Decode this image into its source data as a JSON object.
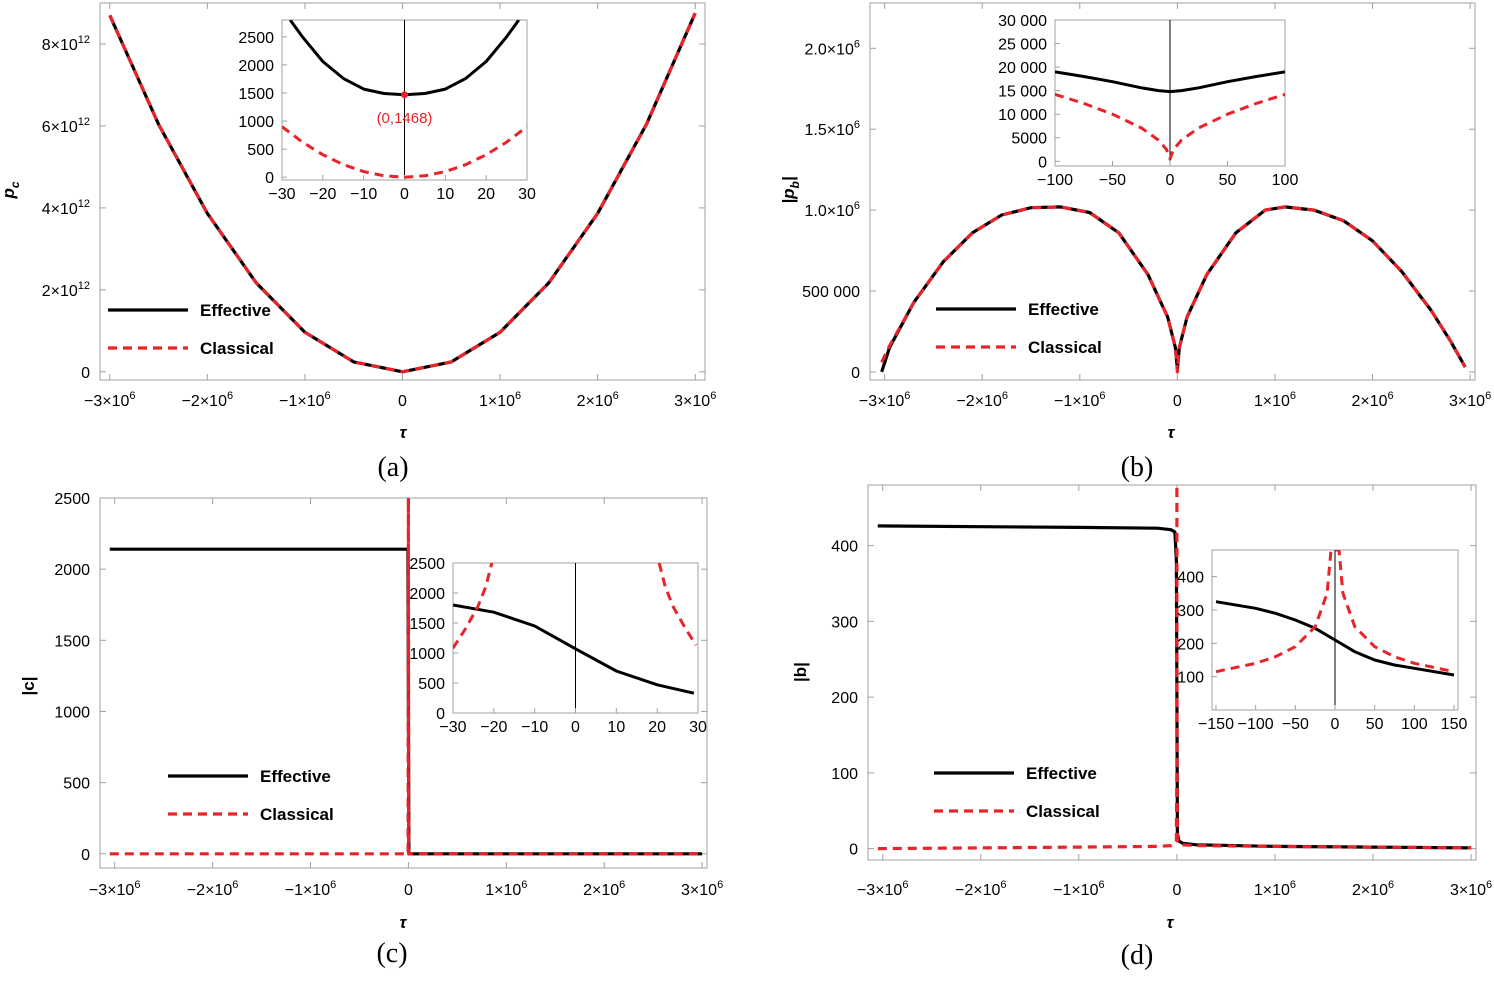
{
  "colors": {
    "effective": "#000000",
    "classical": "#e8232a",
    "frame": "#a0a0a0",
    "background": "#ffffff"
  },
  "legend": {
    "effective": "Effective",
    "classical": "Classical"
  },
  "chart_data": [
    {
      "id": "a",
      "panel_label": "(a)",
      "type": "line",
      "xlabel": "τ",
      "ylabel_main": "p",
      "ylabel_sub": "c",
      "xlim": [
        -3100000,
        3100000
      ],
      "ylim": [
        -200000000000,
        9000000000000
      ],
      "xticks": [
        {
          "v": -3000000,
          "m": "−3×10",
          "e": "6"
        },
        {
          "v": -2000000,
          "m": "−2×10",
          "e": "6"
        },
        {
          "v": -1000000,
          "m": "−1×10",
          "e": "6"
        },
        {
          "v": 0,
          "m": "0",
          "e": ""
        },
        {
          "v": 1000000,
          "m": "1×10",
          "e": "6"
        },
        {
          "v": 2000000,
          "m": "2×10",
          "e": "6"
        },
        {
          "v": 3000000,
          "m": "3×10",
          "e": "6"
        }
      ],
      "yticks": [
        {
          "v": 0,
          "m": "0",
          "e": ""
        },
        {
          "v": 2000000000000,
          "m": "2×10",
          "e": "12"
        },
        {
          "v": 4000000000000,
          "m": "4×10",
          "e": "12"
        },
        {
          "v": 6000000000000,
          "m": "6×10",
          "e": "12"
        },
        {
          "v": 8000000000000,
          "m": "8×10",
          "e": "12"
        }
      ],
      "series": [
        {
          "name": "Effective",
          "style": "solid",
          "x": [
            -3000000,
            -2500000,
            -2000000,
            -1500000,
            -1000000,
            -500000,
            0,
            500000,
            1000000,
            1500000,
            2000000,
            2500000,
            3000000
          ],
          "y": [
            8700000000000,
            6042000000000,
            3867000000000,
            2175000000000,
            967000000000,
            242000000000,
            0,
            242000000000,
            967000000000,
            2175000000000,
            3867000000000,
            6042000000000,
            8750000000000
          ]
        },
        {
          "name": "Classical",
          "style": "dashed",
          "x": [
            -3000000,
            -2500000,
            -2000000,
            -1500000,
            -1000000,
            -500000,
            0,
            500000,
            1000000,
            1500000,
            2000000,
            2500000,
            3000000
          ],
          "y": [
            8700000000000,
            6042000000000,
            3867000000000,
            2175000000000,
            967000000000,
            242000000000,
            0,
            242000000000,
            967000000000,
            2175000000000,
            3867000000000,
            6042000000000,
            8750000000000
          ]
        }
      ],
      "inset": {
        "xlim": [
          -30,
          30
        ],
        "ylim": [
          -50,
          2800
        ],
        "xticks": [
          -30,
          -20,
          -10,
          0,
          10,
          20,
          30
        ],
        "yticks": [
          0,
          500,
          1000,
          1500,
          2000,
          2500
        ],
        "series": [
          {
            "name": "Effective",
            "style": "solid",
            "x": [
              -28,
              -25,
              -20,
              -15,
              -10,
              -5,
              0,
              5,
              10,
              15,
              20,
              25,
              28
            ],
            "y": [
              2800,
              2500,
              2060,
              1760,
              1570,
              1490,
              1468,
              1490,
              1570,
              1760,
              2060,
              2500,
              2800
            ]
          },
          {
            "name": "Classical",
            "style": "dashed",
            "x": [
              -30,
              -25,
              -20,
              -15,
              -10,
              -5,
              0,
              5,
              10,
              15,
              20,
              25,
              30
            ],
            "y": [
              900,
              625,
              400,
              225,
              100,
              25,
              0,
              25,
              100,
              225,
              400,
              625,
              900
            ]
          }
        ],
        "annotation": {
          "text": "(0,1468)",
          "x": 0,
          "y": 1468
        }
      }
    },
    {
      "id": "b",
      "panel_label": "(b)",
      "type": "line",
      "xlabel": "τ",
      "ylabel_main": "|p",
      "ylabel_sub": "b",
      "ylabel_suffix": "|",
      "xlim": [
        -3150000,
        3050000
      ],
      "ylim": [
        -50000,
        2280000
      ],
      "xticks": [
        {
          "v": -3000000,
          "m": "−3×10",
          "e": "6"
        },
        {
          "v": -2000000,
          "m": "−2×10",
          "e": "6"
        },
        {
          "v": -1000000,
          "m": "−1×10",
          "e": "6"
        },
        {
          "v": 0,
          "m": "0",
          "e": ""
        },
        {
          "v": 1000000,
          "m": "1×10",
          "e": "6"
        },
        {
          "v": 2000000,
          "m": "2×10",
          "e": "6"
        },
        {
          "v": 3000000,
          "m": "3×10",
          "e": "6"
        }
      ],
      "yticks": [
        {
          "v": 0,
          "m": "0",
          "e": ""
        },
        {
          "v": 500000,
          "m": "500 000",
          "e": ""
        },
        {
          "v": 1000000,
          "m": "1.0×10",
          "e": "6"
        },
        {
          "v": 1500000,
          "m": "1.5×10",
          "e": "6"
        },
        {
          "v": 2000000,
          "m": "2.0×10",
          "e": "6"
        }
      ],
      "series": [
        {
          "name": "Effective",
          "style": "solid",
          "x": [
            -3030000,
            -2950000,
            -2700000,
            -2400000,
            -2100000,
            -1800000,
            -1500000,
            -1200000,
            -900000,
            -600000,
            -300000,
            -100000,
            -20000,
            0,
            20000,
            100000,
            300000,
            600000,
            900000,
            1100000,
            1400000,
            1700000,
            2000000,
            2300000,
            2600000,
            2800000,
            2950000
          ],
          "y": [
            0,
            150000,
            430000,
            680000,
            860000,
            970000,
            1015000,
            1020000,
            985000,
            860000,
            600000,
            340000,
            150000,
            15000,
            150000,
            340000,
            600000,
            860000,
            1000000,
            1020000,
            1000000,
            935000,
            810000,
            620000,
            380000,
            190000,
            30000
          ]
        },
        {
          "name": "Classical",
          "style": "dashed",
          "x": [
            -3030000,
            -2950000,
            -2700000,
            -2400000,
            -2100000,
            -1800000,
            -1500000,
            -1200000,
            -900000,
            -600000,
            -300000,
            -100000,
            -20000,
            0,
            20000,
            100000,
            300000,
            600000,
            900000,
            1100000,
            1400000,
            1700000,
            2000000,
            2300000,
            2600000,
            2800000,
            2950000
          ],
          "y": [
            60000,
            160000,
            430000,
            680000,
            860000,
            970000,
            1015000,
            1020000,
            985000,
            860000,
            600000,
            340000,
            150000,
            0,
            150000,
            340000,
            600000,
            860000,
            1000000,
            1020000,
            1000000,
            935000,
            810000,
            620000,
            380000,
            190000,
            30000
          ]
        }
      ],
      "inset": {
        "xlim": [
          -100,
          100
        ],
        "ylim": [
          -1000,
          30000
        ],
        "xticks": [
          -100,
          -50,
          0,
          50,
          100
        ],
        "yticks": [
          0,
          5000,
          10000,
          15000,
          20000,
          25000,
          30000
        ],
        "ytick_labels": [
          "0",
          "5000",
          "10 000",
          "15 000",
          "20 000",
          "25 000",
          "30 000"
        ],
        "series": [
          {
            "name": "Effective",
            "style": "solid",
            "x": [
              -100,
              -75,
              -50,
              -25,
              -10,
              0,
              10,
              25,
              50,
              75,
              100
            ],
            "y": [
              19000,
              18000,
              16900,
              15600,
              15000,
              14800,
              15000,
              15600,
              16900,
              18000,
              19000
            ]
          },
          {
            "name": "Classical",
            "style": "dashed",
            "x": [
              -100,
              -75,
              -50,
              -25,
              -10,
              -3,
              0,
              3,
              10,
              25,
              50,
              75,
              100
            ],
            "y": [
              14200,
              12300,
              10000,
              7100,
              4500,
              2500,
              500,
              2500,
              4500,
              7100,
              10000,
              12300,
              14200
            ]
          }
        ]
      }
    },
    {
      "id": "c",
      "panel_label": "(c)",
      "type": "line",
      "xlabel": "τ",
      "ylabel_main": "|c|",
      "xlim": [
        -3150000,
        3050000
      ],
      "ylim": [
        -100,
        2500
      ],
      "xticks": [
        {
          "v": -3000000,
          "m": "−3×10",
          "e": "6"
        },
        {
          "v": -2000000,
          "m": "−2×10",
          "e": "6"
        },
        {
          "v": -1000000,
          "m": "−1×10",
          "e": "6"
        },
        {
          "v": 0,
          "m": "0",
          "e": ""
        },
        {
          "v": 1000000,
          "m": "1×10",
          "e": "6"
        },
        {
          "v": 2000000,
          "m": "2×10",
          "e": "6"
        },
        {
          "v": 3000000,
          "m": "3×10",
          "e": "6"
        }
      ],
      "yticks": [
        {
          "v": 0,
          "m": "0",
          "e": ""
        },
        {
          "v": 500,
          "m": "500",
          "e": ""
        },
        {
          "v": 1000,
          "m": "1000",
          "e": ""
        },
        {
          "v": 1500,
          "m": "1500",
          "e": ""
        },
        {
          "v": 2000,
          "m": "2000",
          "e": ""
        },
        {
          "v": 2500,
          "m": "2500",
          "e": ""
        }
      ],
      "series": [
        {
          "name": "Effective",
          "style": "solid",
          "x": [
            -3050000,
            -5000,
            0,
            5000,
            3000000
          ],
          "y": [
            2140,
            2140,
            1070,
            0,
            0
          ]
        },
        {
          "name": "Classical",
          "style": "dashed",
          "x": [
            -3050000,
            -3000,
            0,
            3000,
            3000000
          ],
          "y": [
            0,
            0,
            2500,
            0,
            0
          ]
        }
      ],
      "inset": {
        "xlim": [
          -30,
          30
        ],
        "ylim": [
          0,
          2500
        ],
        "xticks": [
          -30,
          -20,
          -10,
          0,
          10,
          20,
          30
        ],
        "yticks": [
          0,
          500,
          1000,
          1500,
          2000,
          2500
        ],
        "series": [
          {
            "name": "Effective",
            "style": "solid",
            "x": [
              -30,
              -20,
              -10,
              0,
              10,
              20,
              29
            ],
            "y": [
              1800,
              1680,
              1450,
              1070,
              700,
              470,
              330
            ]
          },
          {
            "name": "Classical",
            "style": "dashed",
            "segments": [
              {
                "x": [
                  -30,
                  -27,
                  -24,
                  -22,
                  -20.5
                ],
                "y": [
                  1080,
                  1400,
                  1760,
                  2100,
                  2500
                ]
              },
              {
                "x": [
                  20.5,
                  22,
                  24,
                  27,
                  29.5
                ],
                "y": [
                  2500,
                  2100,
                  1760,
                  1400,
                  1130
                ]
              }
            ]
          }
        ]
      }
    },
    {
      "id": "d",
      "panel_label": "(d)",
      "type": "line",
      "xlabel": "τ",
      "ylabel_main": "|b|",
      "xlim": [
        -3150000,
        3050000
      ],
      "ylim": [
        -15,
        480
      ],
      "xticks": [
        {
          "v": -3000000,
          "m": "−3×10",
          "e": "6"
        },
        {
          "v": -2000000,
          "m": "−2×10",
          "e": "6"
        },
        {
          "v": -1000000,
          "m": "−1×10",
          "e": "6"
        },
        {
          "v": 0,
          "m": "0",
          "e": ""
        },
        {
          "v": 1000000,
          "m": "1×10",
          "e": "6"
        },
        {
          "v": 2000000,
          "m": "2×10",
          "e": "6"
        },
        {
          "v": 3000000,
          "m": "3×10",
          "e": "6"
        }
      ],
      "yticks": [
        {
          "v": 0,
          "m": "0",
          "e": ""
        },
        {
          "v": 100,
          "m": "100",
          "e": ""
        },
        {
          "v": 200,
          "m": "200",
          "e": ""
        },
        {
          "v": 300,
          "m": "300",
          "e": ""
        },
        {
          "v": 400,
          "m": "400",
          "e": ""
        }
      ],
      "series": [
        {
          "name": "Effective",
          "style": "solid",
          "x": [
            -3050000,
            -2000000,
            -1000000,
            -200000,
            -60000,
            -20000,
            -5000,
            0,
            5000,
            20000,
            60000,
            200000,
            1000000,
            2000000,
            3000000
          ],
          "y": [
            426,
            425,
            424,
            423,
            421,
            418,
            380,
            210,
            20,
            10,
            7,
            5,
            3,
            2,
            1
          ]
        },
        {
          "name": "Classical",
          "style": "dashed",
          "x": [
            -3050000,
            -2000000,
            -1000000,
            -200000,
            -60000,
            -20000,
            -5000,
            -1000,
            0,
            1000,
            5000,
            20000,
            60000,
            200000,
            1000000,
            2000000,
            3000000
          ],
          "y": [
            0,
            1,
            2,
            3,
            4,
            6,
            10,
            100,
            480,
            100,
            10,
            6,
            5,
            4,
            3,
            2,
            1
          ]
        }
      ],
      "inset": {
        "xlim": [
          -155,
          155
        ],
        "ylim": [
          0,
          480
        ],
        "xticks": [
          -150,
          -100,
          -50,
          0,
          50,
          100,
          150
        ],
        "yticks": [
          100,
          200,
          300,
          400
        ],
        "series": [
          {
            "name": "Effective",
            "style": "solid",
            "x": [
              -150,
              -100,
              -75,
              -50,
              -25,
              0,
              25,
              50,
              75,
              100,
              150
            ],
            "y": [
              325,
              305,
              290,
              270,
              245,
              210,
              175,
              150,
              135,
              125,
              105
            ]
          },
          {
            "name": "Classical",
            "style": "dashed",
            "x": [
              -150,
              -100,
              -75,
              -50,
              -25,
              -10,
              -5,
              0,
              5,
              10,
              25,
              50,
              75,
              100,
              150
            ],
            "y": [
              115,
              140,
              160,
              190,
              250,
              350,
              480,
              480,
              480,
              350,
              250,
              190,
              160,
              140,
              115
            ]
          }
        ]
      }
    }
  ]
}
